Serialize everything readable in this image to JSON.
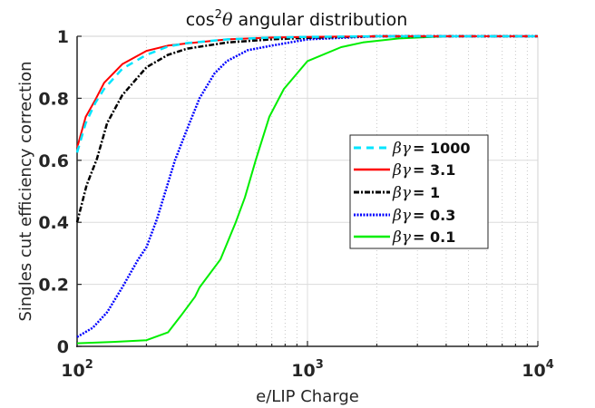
{
  "chart_data": {
    "type": "line",
    "title": "cos²θ angular distribution",
    "title_parts": {
      "prefix": "cos",
      "sup": "2",
      "theta": "θ",
      "suffix": " angular distribution"
    },
    "xlabel": "e/LIP Charge",
    "ylabel": "Singles cut efficiency correction",
    "xscale": "log",
    "xlim": [
      100,
      10000
    ],
    "ylim": [
      0,
      1
    ],
    "xticks": [
      {
        "base": "10",
        "exp": "2",
        "value": 100
      },
      {
        "base": "10",
        "exp": "3",
        "value": 1000
      },
      {
        "base": "10",
        "exp": "4",
        "value": 10000
      }
    ],
    "yticks": [
      "0",
      "0.2",
      "0.4",
      "0.6",
      "0.8",
      "1"
    ],
    "grid": {
      "major": true,
      "minor_x": true
    },
    "legend_position": "inside-right",
    "series": [
      {
        "name": "βγ = 1000",
        "label_value": "1000",
        "color": "#00e5ff",
        "dash": "8,6",
        "width": 2.5,
        "x": [
          100,
          109,
          120,
          131,
          157,
          200,
          248,
          300,
          450,
          700,
          1000,
          2000,
          10000
        ],
        "y": [
          0.625,
          0.72,
          0.785,
          0.83,
          0.895,
          0.94,
          0.967,
          0.978,
          0.99,
          0.996,
          0.998,
          1.0,
          1.0
        ]
      },
      {
        "name": "βγ = 3.1",
        "label_value": "3.1",
        "color": "#ff0000",
        "dash": "",
        "width": 2,
        "x": [
          100,
          109,
          120,
          131,
          157,
          200,
          248,
          300,
          450,
          700,
          1000,
          2000,
          10000
        ],
        "y": [
          0.64,
          0.74,
          0.795,
          0.85,
          0.91,
          0.953,
          0.97,
          0.977,
          0.99,
          0.996,
          0.998,
          1.0,
          1.0
        ]
      },
      {
        "name": "βγ = 1",
        "label_value": "1",
        "color": "#000000",
        "dash": "6,2,2,2",
        "width": 2.5,
        "x": [
          100,
          110,
          122,
          135,
          157,
          200,
          248,
          300,
          450,
          700,
          1000,
          2000,
          10000
        ],
        "y": [
          0.4,
          0.52,
          0.605,
          0.72,
          0.81,
          0.9,
          0.94,
          0.96,
          0.98,
          0.99,
          0.995,
          1.0,
          1.0
        ]
      },
      {
        "name": "βγ = 0.3",
        "label_value": "0.3",
        "color": "#0000ff",
        "dash": "2,1.5",
        "width": 2.5,
        "x": [
          100,
          117,
          135,
          157,
          184,
          200,
          222,
          266,
          300,
          340,
          395,
          447,
          550,
          700,
          1000,
          2000,
          10000
        ],
        "y": [
          0.03,
          0.06,
          0.11,
          0.19,
          0.28,
          0.32,
          0.41,
          0.6,
          0.7,
          0.8,
          0.88,
          0.92,
          0.955,
          0.97,
          0.99,
          1.0,
          1.0
        ]
      },
      {
        "name": "βγ = 0.1",
        "label_value": "0.1",
        "color": "#00ee00",
        "dash": "",
        "width": 2,
        "x": [
          100,
          150,
          200,
          248,
          283,
          325,
          340,
          419,
          488,
          535,
          596,
          683,
          790,
          1000,
          1400,
          1740,
          2500,
          4000,
          10000
        ],
        "y": [
          0.01,
          0.015,
          0.02,
          0.045,
          0.1,
          0.16,
          0.19,
          0.28,
          0.4,
          0.48,
          0.6,
          0.74,
          0.83,
          0.92,
          0.965,
          0.98,
          0.993,
          1.0,
          1.0
        ]
      }
    ]
  }
}
